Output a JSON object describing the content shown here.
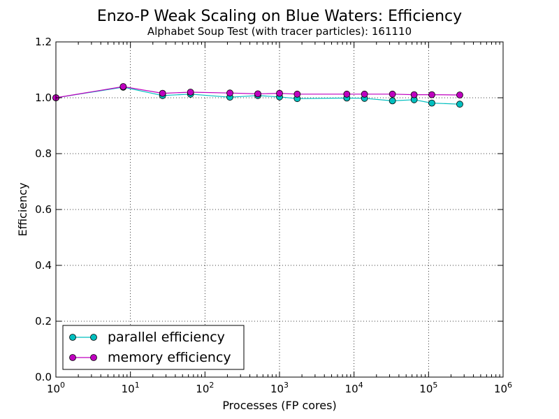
{
  "chart_data": {
    "type": "line",
    "title": "Enzo-P Weak Scaling on Blue Waters: Efficiency",
    "subtitle": "Alphabet Soup Test (with tracer particles): 161110",
    "xlabel": "Processes (FP cores)",
    "ylabel": "Efficiency",
    "xscale": "log",
    "xlim": [
      1,
      1000000
    ],
    "ylim": [
      0.0,
      1.2
    ],
    "grid": true,
    "legend_position": "lower-left",
    "x_ticks": [
      {
        "value": 1,
        "base": "10",
        "exp": "0"
      },
      {
        "value": 10,
        "base": "10",
        "exp": "1"
      },
      {
        "value": 100,
        "base": "10",
        "exp": "2"
      },
      {
        "value": 1000,
        "base": "10",
        "exp": "3"
      },
      {
        "value": 10000,
        "base": "10",
        "exp": "4"
      },
      {
        "value": 100000,
        "base": "10",
        "exp": "5"
      },
      {
        "value": 1000000,
        "base": "10",
        "exp": "6"
      }
    ],
    "y_ticks": [
      {
        "value": 0.0,
        "label": "0.0"
      },
      {
        "value": 0.2,
        "label": "0.2"
      },
      {
        "value": 0.4,
        "label": "0.4"
      },
      {
        "value": 0.6,
        "label": "0.6"
      },
      {
        "value": 0.8,
        "label": "0.8"
      },
      {
        "value": 1.0,
        "label": "1.0"
      },
      {
        "value": 1.2,
        "label": "1.2"
      }
    ],
    "series": [
      {
        "name": "parallel efficiency",
        "color": "#00bfbf",
        "x": [
          1,
          8,
          27,
          64,
          216,
          512,
          1000,
          1728,
          8000,
          13824,
          32768,
          64000,
          110592,
          262144
        ],
        "y": [
          1.0,
          1.038,
          1.008,
          1.013,
          1.002,
          1.008,
          1.003,
          0.997,
          0.999,
          0.998,
          0.989,
          0.993,
          0.981,
          0.977
        ]
      },
      {
        "name": "memory efficiency",
        "color": "#bf00bf",
        "x": [
          1,
          8,
          27,
          64,
          216,
          512,
          1000,
          1728,
          8000,
          13824,
          32768,
          64000,
          110592,
          262144
        ],
        "y": [
          1.0,
          1.04,
          1.016,
          1.02,
          1.017,
          1.014,
          1.016,
          1.013,
          1.013,
          1.013,
          1.013,
          1.011,
          1.011,
          1.01
        ]
      }
    ]
  }
}
